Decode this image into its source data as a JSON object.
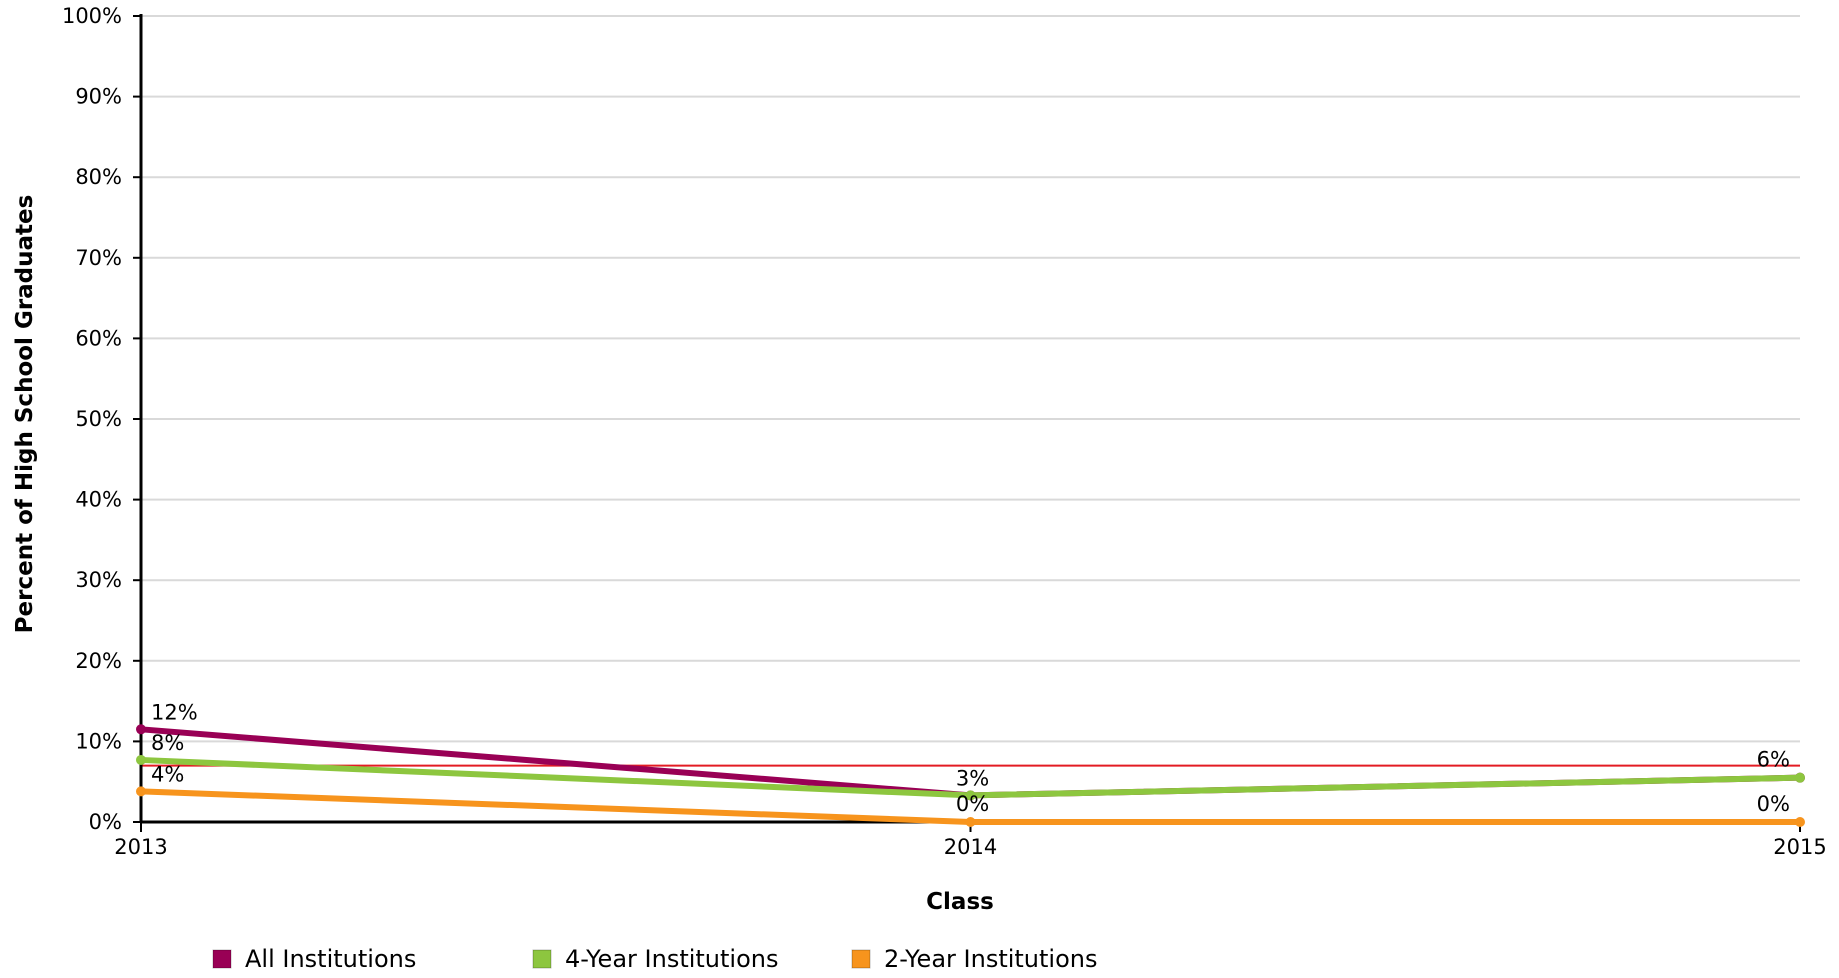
{
  "chart_data": {
    "type": "line",
    "x": [
      "2013",
      "2014",
      "2015"
    ],
    "xlabel": "Class",
    "ylabel": "Percent of High School Graduates",
    "ylim": [
      0,
      100
    ],
    "yticks": [
      "0%",
      "10%",
      "20%",
      "30%",
      "40%",
      "50%",
      "60%",
      "70%",
      "80%",
      "90%",
      "100%"
    ],
    "grid": true,
    "legend_position": "bottom-left",
    "series": [
      {
        "name": "All Institutions",
        "color": "#990055",
        "values": [
          11.5,
          3.3,
          5.5
        ],
        "labels": [
          "12%",
          "",
          ""
        ]
      },
      {
        "name": "4-Year Institutions",
        "color": "#8dc63f",
        "values": [
          7.7,
          3.3,
          5.5
        ],
        "labels": [
          "8%",
          "3%",
          "6%"
        ]
      },
      {
        "name": "2-Year Institutions",
        "color": "#f7941d",
        "values": [
          3.8,
          0,
          0
        ],
        "labels": [
          "4%",
          "0%",
          "0%"
        ]
      }
    ],
    "reference_line": {
      "value": 7,
      "color": "#e31b23"
    }
  }
}
